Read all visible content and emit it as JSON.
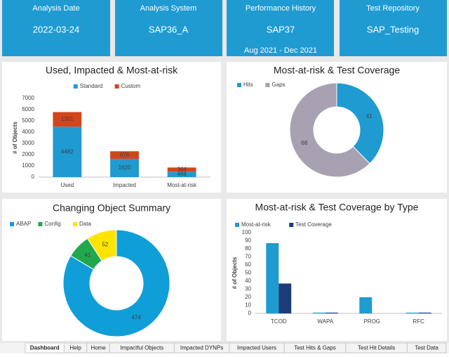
{
  "cards": [
    {
      "label": "Analysis Date",
      "value": "2022-03-24"
    },
    {
      "label": "Analysis System",
      "value": "SAP36_A"
    },
    {
      "label": "Performance History",
      "value": "SAP37",
      "note": "Aug 2021 - Dec 2021"
    },
    {
      "label": "Test Repository",
      "value": "SAP_Testing"
    }
  ],
  "chart_data": [
    {
      "type": "bar",
      "stacked": true,
      "title": "Used, Impacted & Most-at-risk",
      "y_label": "# of Objects",
      "categories": [
        "Used",
        "Impacted",
        "Most-at-risk"
      ],
      "series": [
        {
          "name": "Standard",
          "color": "#1f9bd1",
          "values": [
            4482,
            1620,
            488
          ]
        },
        {
          "name": "Custom",
          "color": "#d2461b",
          "values": [
            1301,
            676,
            364
          ]
        }
      ],
      "ylim": [
        0,
        7000
      ],
      "yticks": [
        0,
        1000,
        2000,
        3000,
        4000,
        5000,
        6000,
        7000
      ],
      "grid": false,
      "legend": "top"
    },
    {
      "type": "donut",
      "title": "Most-at-risk & Test Coverage",
      "categories": [
        "Hits",
        "Gaps"
      ],
      "values": [
        41,
        68
      ],
      "colors": [
        "#1f9bd1",
        "#a8a1b1"
      ],
      "legend": "top-left"
    },
    {
      "type": "donut",
      "title": "Changing Object Summary",
      "categories": [
        "ABAP",
        "Config",
        "Data"
      ],
      "values": [
        474,
        41,
        52
      ],
      "colors": [
        "#0f9ed8",
        "#21a84f",
        "#ffe400"
      ],
      "legend": "top-left"
    },
    {
      "type": "bar",
      "stacked": false,
      "title": "Most-at-risk & Test Coverage by Type",
      "y_label": "# of Objects",
      "categories": [
        "TCOD",
        "WAPA",
        "PROG",
        "RFC"
      ],
      "series": [
        {
          "name": "Most-at-risk",
          "color": "#1f9bd1",
          "values": [
            87,
            1,
            20,
            1
          ]
        },
        {
          "name": "Test Coverage",
          "color": "#1d3d78",
          "values": [
            37,
            1,
            0,
            1
          ]
        }
      ],
      "ylim": [
        0,
        100
      ],
      "yticks": [
        0,
        10,
        20,
        30,
        40,
        50,
        60,
        70,
        80,
        90,
        100
      ],
      "grid": false,
      "legend": "top-left"
    }
  ],
  "tabs": [
    "Dashboard",
    "Help",
    "Home",
    "Impactful Objects",
    "Impacted DYNPs",
    "Impacted Users",
    "Test Hits & Gaps",
    "Test Hit Details",
    "Test Data"
  ]
}
